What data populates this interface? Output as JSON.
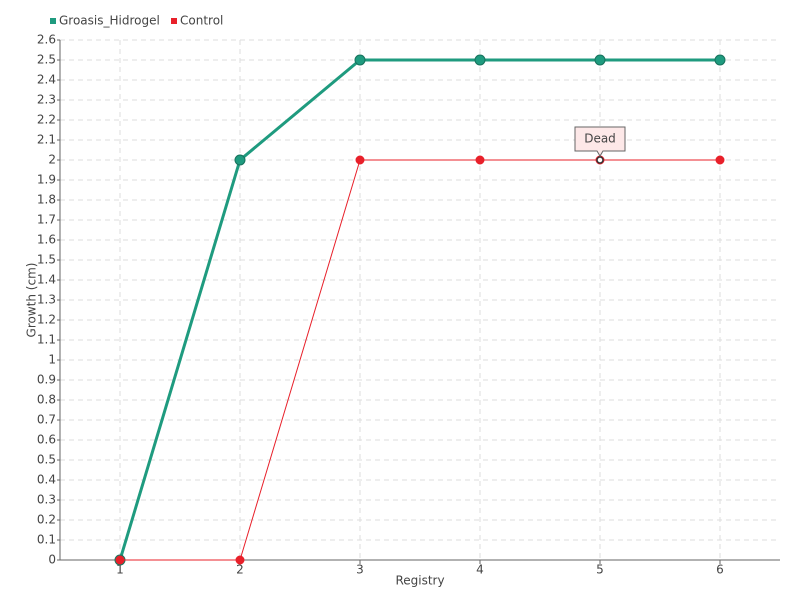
{
  "chart_data": {
    "type": "line",
    "x_label": "Registry",
    "y_label": "Growth (cm)",
    "categories": [
      "1",
      "2",
      "3",
      "4",
      "5",
      "6"
    ],
    "series": [
      {
        "name": "Groasis_Hidrogel",
        "color": "#1f9b7f",
        "values": [
          0,
          2,
          2.5,
          2.5,
          2.5,
          2.5
        ]
      },
      {
        "name": "Control",
        "color": "#e8202a",
        "values": [
          0,
          0,
          2,
          2,
          2,
          2
        ]
      }
    ],
    "ylim": [
      0,
      2.6
    ],
    "yticks": [
      0,
      0.1,
      0.2,
      0.3,
      0.4,
      0.5,
      0.6,
      0.7,
      0.8,
      0.9,
      1,
      1.1,
      1.2,
      1.3,
      1.4,
      1.5,
      1.6,
      1.7,
      1.8,
      1.9,
      2,
      2.1,
      2.2,
      2.3,
      2.4,
      2.5,
      2.6
    ],
    "grid": true,
    "legend": "top-left",
    "annotations": [
      {
        "text": "Dead"
      }
    ]
  }
}
